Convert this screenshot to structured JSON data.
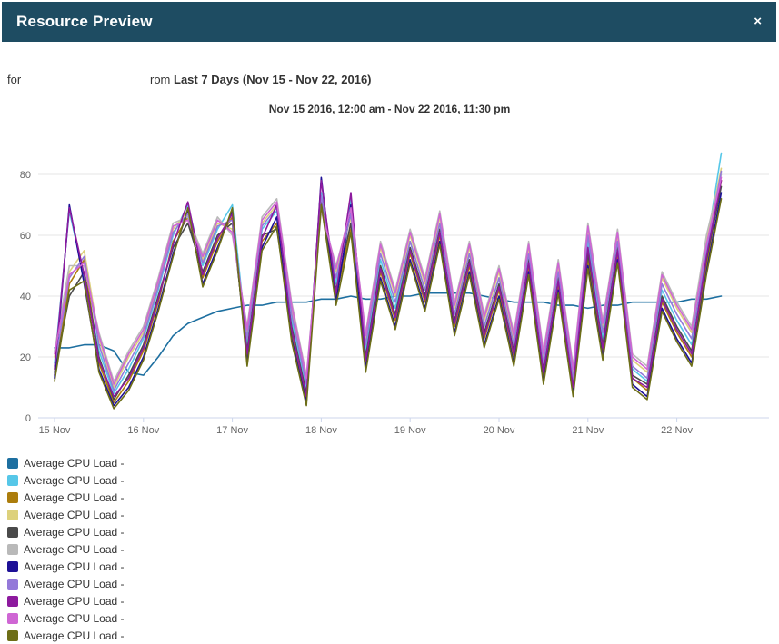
{
  "header": {
    "title": "Resource Preview",
    "close_label": "×"
  },
  "subheader": {
    "prefix": "for",
    "from_fragment": "rom",
    "range_bold": "Last 7 Days (Nov 15 - Nov 22, 2016)"
  },
  "colors": {
    "header_bg": "#1E4C62",
    "header_text": "#FFFFFF",
    "grid": "#E6E6E6",
    "axis": "#CCD6EB",
    "tick_label": "#666666",
    "legend_text": "#333333"
  },
  "chart_data": {
    "type": "line",
    "title": "Nov 15 2016, 12:00 am - Nov 22 2016, 11:30 pm",
    "x_tick_labels": [
      "15 Nov",
      "16 Nov",
      "17 Nov",
      "18 Nov",
      "19 Nov",
      "20 Nov",
      "21 Nov",
      "22 Nov"
    ],
    "y_ticks": [
      0,
      20,
      40,
      60,
      80
    ],
    "ylim": [
      0,
      95
    ],
    "grid": true,
    "legend_position": "bottom-left",
    "series": [
      {
        "name": "Average CPU Load - ",
        "color": "#1D6FA0",
        "values": [
          23,
          23,
          24,
          24,
          22,
          15,
          14,
          20,
          27,
          31,
          33,
          35,
          36,
          37,
          37,
          38,
          38,
          38,
          39,
          39,
          40,
          39,
          39,
          40,
          40,
          41,
          41,
          41,
          41,
          40,
          39,
          38,
          38,
          38,
          37,
          37,
          36,
          37,
          37,
          38,
          38,
          38,
          38,
          39,
          39,
          40
        ]
      },
      {
        "name": "Average CPU Load - ",
        "color": "#56C7E8",
        "values": [
          18,
          68,
          46,
          22,
          8,
          16,
          26,
          42,
          60,
          70,
          50,
          62,
          70,
          24,
          62,
          68,
          32,
          10,
          74,
          44,
          72,
          22,
          52,
          36,
          58,
          42,
          64,
          34,
          54,
          30,
          46,
          24,
          54,
          18,
          48,
          12,
          58,
          26,
          58,
          16,
          12,
          42,
          32,
          24,
          56,
          87
        ]
      },
      {
        "name": "Average CPU Load - ",
        "color": "#AC7D0C",
        "values": [
          14,
          44,
          52,
          18,
          5,
          12,
          22,
          38,
          58,
          66,
          46,
          58,
          66,
          20,
          58,
          64,
          28,
          6,
          72,
          40,
          62,
          18,
          48,
          32,
          54,
          38,
          60,
          30,
          50,
          26,
          42,
          20,
          50,
          14,
          44,
          9,
          52,
          22,
          54,
          13,
          9,
          38,
          28,
          20,
          50,
          78
        ]
      },
      {
        "name": "Average CPU Load - ",
        "color": "#DDD17C",
        "values": [
          20,
          48,
          55,
          26,
          10,
          20,
          28,
          44,
          62,
          68,
          52,
          64,
          62,
          28,
          64,
          70,
          36,
          12,
          70,
          48,
          66,
          26,
          56,
          40,
          60,
          44,
          66,
          36,
          56,
          32,
          48,
          26,
          56,
          20,
          50,
          15,
          62,
          30,
          60,
          19,
          15,
          46,
          36,
          28,
          58,
          82
        ]
      },
      {
        "name": "Average CPU Load - ",
        "color": "#4A4A4A",
        "values": [
          15,
          40,
          48,
          20,
          6,
          14,
          24,
          40,
          56,
          64,
          48,
          60,
          64,
          22,
          60,
          62,
          30,
          8,
          71,
          42,
          64,
          20,
          50,
          34,
          56,
          40,
          62,
          32,
          52,
          28,
          44,
          22,
          52,
          16,
          46,
          10,
          54,
          24,
          56,
          14,
          11,
          40,
          30,
          22,
          52,
          76
        ]
      },
      {
        "name": "Average CPU Load - ",
        "color": "#B9B9B9",
        "values": [
          22,
          50,
          50,
          28,
          12,
          22,
          30,
          46,
          64,
          66,
          54,
          66,
          60,
          30,
          66,
          72,
          38,
          14,
          68,
          50,
          68,
          28,
          58,
          42,
          62,
          46,
          68,
          38,
          58,
          34,
          50,
          28,
          58,
          22,
          52,
          17,
          64,
          32,
          62,
          21,
          17,
          48,
          38,
          30,
          60,
          80
        ]
      },
      {
        "name": "Average CPU Load - ",
        "color": "#1D1096",
        "values": [
          13,
          70,
          44,
          16,
          4,
          10,
          20,
          36,
          54,
          68,
          44,
          56,
          68,
          18,
          56,
          66,
          26,
          5,
          79,
          38,
          70,
          16,
          46,
          30,
          52,
          36,
          58,
          28,
          48,
          24,
          40,
          18,
          48,
          12,
          42,
          8,
          50,
          20,
          52,
          11,
          7,
          36,
          26,
          18,
          48,
          74
        ]
      },
      {
        "name": "Average CPU Load - ",
        "color": "#9479D9",
        "values": [
          17,
          46,
          53,
          24,
          9,
          18,
          27,
          43,
          61,
          67,
          51,
          63,
          65,
          26,
          63,
          69,
          34,
          11,
          73,
          46,
          67,
          24,
          54,
          38,
          58,
          42,
          64,
          34,
          54,
          30,
          46,
          24,
          54,
          18,
          48,
          13,
          60,
          28,
          58,
          17,
          13,
          44,
          34,
          26,
          54,
          81
        ]
      },
      {
        "name": "Average CPU Load - ",
        "color": "#8D1A9E",
        "values": [
          16,
          69,
          47,
          19,
          7,
          13,
          23,
          39,
          57,
          71,
          47,
          59,
          67,
          21,
          59,
          70,
          29,
          7,
          78,
          41,
          74,
          19,
          49,
          33,
          55,
          39,
          61,
          31,
          51,
          27,
          43,
          21,
          51,
          15,
          45,
          10,
          56,
          23,
          55,
          13,
          10,
          39,
          29,
          21,
          53,
          78
        ]
      },
      {
        "name": "Average CPU Load - ",
        "color": "#CF66D4",
        "values": [
          21,
          47,
          51,
          27,
          11,
          21,
          29,
          45,
          63,
          65,
          53,
          65,
          61,
          29,
          65,
          71,
          37,
          13,
          69,
          49,
          69,
          27,
          57,
          41,
          61,
          45,
          67,
          37,
          57,
          33,
          49,
          27,
          57,
          21,
          51,
          16,
          63,
          31,
          61,
          20,
          16,
          47,
          37,
          29,
          57,
          79
        ]
      },
      {
        "name": "Average CPU Load - ",
        "color": "#6D6E17",
        "values": [
          12,
          42,
          45,
          15,
          3,
          9,
          19,
          35,
          53,
          69,
          43,
          55,
          69,
          17,
          55,
          63,
          25,
          4,
          70,
          37,
          61,
          15,
          45,
          29,
          51,
          35,
          57,
          27,
          47,
          23,
          39,
          17,
          47,
          11,
          41,
          7,
          49,
          19,
          51,
          10,
          6,
          35,
          25,
          17,
          47,
          72
        ]
      }
    ]
  }
}
